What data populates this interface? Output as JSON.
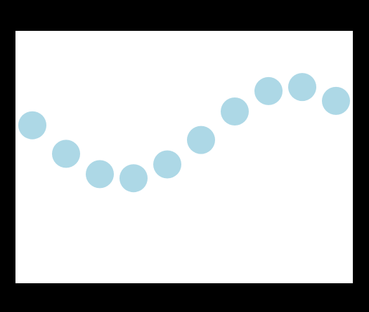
{
  "chart_data": {
    "type": "scatter",
    "x": [
      0,
      1,
      2,
      3,
      4,
      5,
      6,
      7,
      8,
      9
    ],
    "y": [
      0.84,
      0.49,
      0.24,
      0.19,
      0.36,
      0.66,
      1.01,
      1.26,
      1.31,
      1.14
    ],
    "xlim": [
      -0.5,
      9.5
    ],
    "ylim": [
      -1.1,
      2.0
    ],
    "grid": false,
    "colors": {
      "points": "#add8e6",
      "plot_background": "#ffffff",
      "frame": "#000000"
    }
  }
}
